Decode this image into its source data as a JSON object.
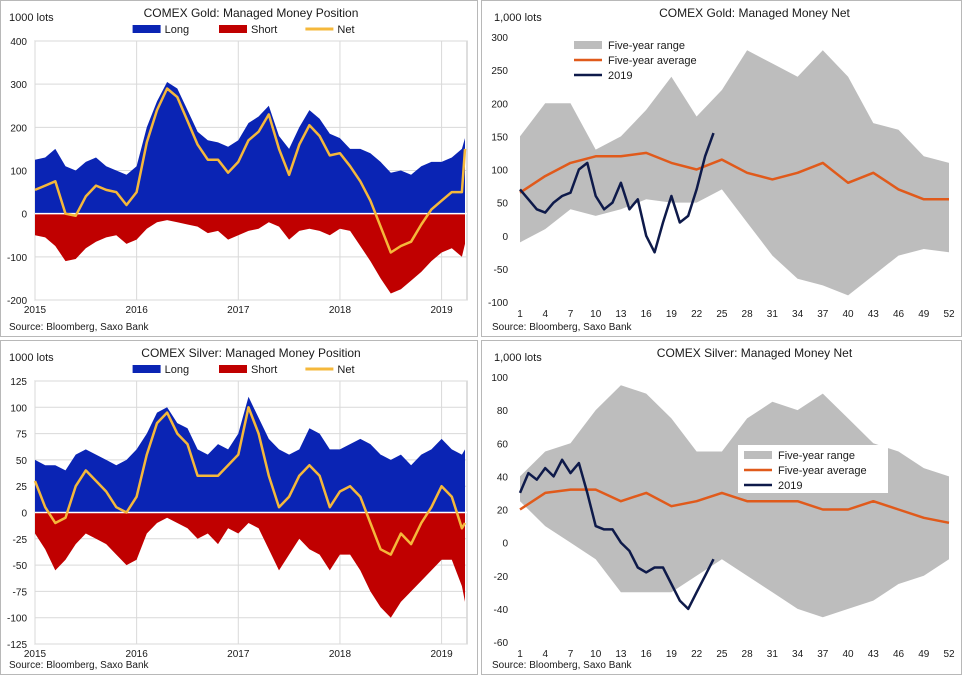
{
  "colors": {
    "long": "#0a24b4",
    "short": "#c00000",
    "net": "#f5b83b",
    "range": "#bdbdbd",
    "average": "#e05a1b",
    "y2019": "#0e1a4a"
  },
  "chart_data": [
    {
      "type": "area",
      "title": "COMEX Gold: Managed Money Position",
      "ylabel": "1000 lots",
      "source": "Source: Bloomberg, Saxo Bank",
      "ylim": [
        -200,
        400
      ],
      "yticks": [
        -200,
        -100,
        0,
        100,
        200,
        300,
        400
      ],
      "xlim": [
        2015.0,
        2019.25
      ],
      "xticks": [
        2015,
        2016,
        2017,
        2018,
        2019
      ],
      "legend": [
        "Long",
        "Short",
        "Net"
      ],
      "x": [
        2015.0,
        2015.1,
        2015.2,
        2015.3,
        2015.4,
        2015.5,
        2015.6,
        2015.7,
        2015.8,
        2015.9,
        2016.0,
        2016.1,
        2016.2,
        2016.3,
        2016.4,
        2016.5,
        2016.6,
        2016.7,
        2016.8,
        2016.9,
        2017.0,
        2017.1,
        2017.2,
        2017.3,
        2017.4,
        2017.5,
        2017.6,
        2017.7,
        2017.8,
        2017.9,
        2018.0,
        2018.1,
        2018.2,
        2018.3,
        2018.4,
        2018.5,
        2018.6,
        2018.7,
        2018.8,
        2018.9,
        2019.0,
        2019.1,
        2019.2,
        2019.23
      ],
      "series": [
        {
          "name": "Long",
          "values": [
            125,
            130,
            150,
            110,
            100,
            120,
            130,
            110,
            100,
            90,
            110,
            200,
            260,
            305,
            290,
            240,
            190,
            170,
            165,
            155,
            170,
            210,
            225,
            250,
            180,
            150,
            200,
            240,
            220,
            185,
            175,
            150,
            150,
            140,
            120,
            95,
            100,
            90,
            110,
            120,
            120,
            130,
            150,
            175
          ]
        },
        {
          "name": "Short",
          "values": [
            -50,
            -55,
            -75,
            -110,
            -105,
            -80,
            -65,
            -55,
            -50,
            -70,
            -60,
            -35,
            -20,
            -15,
            -20,
            -25,
            -30,
            -45,
            -40,
            -60,
            -50,
            -40,
            -35,
            -20,
            -30,
            -60,
            -40,
            -35,
            -40,
            -50,
            -35,
            -40,
            -75,
            -110,
            -150,
            -185,
            -175,
            -155,
            -135,
            -110,
            -90,
            -80,
            -100,
            -70
          ]
        },
        {
          "name": "Net",
          "values": [
            55,
            65,
            75,
            0,
            -5,
            40,
            65,
            55,
            50,
            20,
            50,
            165,
            240,
            290,
            270,
            215,
            160,
            125,
            125,
            95,
            120,
            170,
            190,
            230,
            150,
            90,
            160,
            205,
            180,
            135,
            140,
            110,
            75,
            30,
            -30,
            -90,
            -75,
            -65,
            -25,
            10,
            30,
            50,
            50,
            150
          ]
        }
      ]
    },
    {
      "type": "line",
      "title": "COMEX Gold: Managed Money Net",
      "ylabel": "1,000 lots",
      "source": "Source: Bloomberg, Saxo Bank",
      "ylim": [
        -100,
        300
      ],
      "yticks": [
        -100,
        -50,
        0,
        50,
        100,
        150,
        200,
        250,
        300
      ],
      "xlim": [
        1,
        52
      ],
      "xticks": [
        1,
        4,
        7,
        10,
        13,
        16,
        19,
        22,
        25,
        28,
        31,
        34,
        37,
        40,
        43,
        46,
        49,
        52
      ],
      "legend": [
        "Five-year range",
        "Five-year average",
        "2019"
      ],
      "x": [
        1,
        4,
        7,
        10,
        13,
        16,
        19,
        22,
        25,
        28,
        31,
        34,
        37,
        40,
        43,
        46,
        49,
        52
      ],
      "series": [
        {
          "name": "Five-year range",
          "low": [
            -10,
            10,
            40,
            30,
            40,
            55,
            50,
            50,
            70,
            20,
            -30,
            -65,
            -75,
            -90,
            -60,
            -30,
            -20,
            -25
          ],
          "high": [
            150,
            200,
            200,
            130,
            150,
            190,
            240,
            180,
            220,
            280,
            260,
            240,
            280,
            240,
            170,
            160,
            120,
            110
          ]
        },
        {
          "name": "Five-year average",
          "values": [
            65,
            90,
            110,
            120,
            120,
            125,
            110,
            100,
            115,
            95,
            85,
            95,
            110,
            80,
            95,
            70,
            55,
            55
          ]
        },
        {
          "name": "2019",
          "x": [
            1,
            2,
            3,
            4,
            5,
            6,
            7,
            8,
            9,
            10,
            11,
            12,
            13,
            14,
            15,
            16,
            17,
            18,
            19,
            20,
            21,
            22,
            23,
            24
          ],
          "values": [
            70,
            55,
            40,
            35,
            50,
            60,
            65,
            100,
            110,
            60,
            40,
            50,
            80,
            40,
            55,
            0,
            -25,
            20,
            60,
            20,
            30,
            70,
            120,
            155
          ]
        }
      ]
    },
    {
      "type": "area",
      "title": "COMEX Silver: Managed Money Position",
      "ylabel": "1000 lots",
      "source": "Source: Bloomberg, Saxo Bank",
      "ylim": [
        -125,
        125
      ],
      "yticks": [
        -125,
        -100,
        -75,
        -50,
        -25,
        0,
        25,
        50,
        75,
        100,
        125
      ],
      "xlim": [
        2015.0,
        2019.25
      ],
      "xticks": [
        2015,
        2016,
        2017,
        2018,
        2019
      ],
      "legend": [
        "Long",
        "Short",
        "Net"
      ],
      "x": [
        2015.0,
        2015.1,
        2015.2,
        2015.3,
        2015.4,
        2015.5,
        2015.6,
        2015.7,
        2015.8,
        2015.9,
        2016.0,
        2016.1,
        2016.2,
        2016.3,
        2016.4,
        2016.5,
        2016.6,
        2016.7,
        2016.8,
        2016.9,
        2017.0,
        2017.1,
        2017.2,
        2017.3,
        2017.4,
        2017.5,
        2017.6,
        2017.7,
        2017.8,
        2017.9,
        2018.0,
        2018.1,
        2018.2,
        2018.3,
        2018.4,
        2018.5,
        2018.6,
        2018.7,
        2018.8,
        2018.9,
        2019.0,
        2019.1,
        2019.2,
        2019.23
      ],
      "series": [
        {
          "name": "Long",
          "values": [
            50,
            45,
            45,
            40,
            55,
            60,
            55,
            50,
            45,
            50,
            60,
            75,
            95,
            100,
            85,
            80,
            60,
            55,
            65,
            60,
            75,
            110,
            90,
            70,
            60,
            55,
            60,
            80,
            75,
            60,
            60,
            65,
            70,
            65,
            55,
            50,
            55,
            45,
            55,
            60,
            70,
            60,
            55,
            60
          ]
        },
        {
          "name": "Short",
          "values": [
            -20,
            -35,
            -55,
            -45,
            -30,
            -20,
            -25,
            -30,
            -40,
            -50,
            -45,
            -20,
            -10,
            -5,
            -10,
            -15,
            -25,
            -20,
            -30,
            -15,
            -20,
            -10,
            -15,
            -35,
            -55,
            -40,
            -25,
            -35,
            -40,
            -55,
            -40,
            -40,
            -55,
            -75,
            -90,
            -100,
            -85,
            -75,
            -65,
            -55,
            -45,
            -45,
            -70,
            -85
          ]
        },
        {
          "name": "Net",
          "values": [
            30,
            5,
            -10,
            -5,
            25,
            40,
            30,
            20,
            5,
            0,
            15,
            55,
            85,
            95,
            75,
            65,
            35,
            35,
            35,
            45,
            55,
            100,
            75,
            35,
            5,
            15,
            35,
            45,
            35,
            5,
            20,
            25,
            15,
            -10,
            -35,
            -40,
            -20,
            -30,
            -10,
            5,
            25,
            15,
            -15,
            -10
          ]
        }
      ]
    },
    {
      "type": "line",
      "title": "COMEX Silver: Managed Money Net",
      "ylabel": "1,000 lots",
      "source": "Source: Bloomberg, Saxo Bank",
      "ylim": [
        -60,
        100
      ],
      "yticks": [
        -60,
        -40,
        -20,
        0,
        20,
        40,
        60,
        80,
        100
      ],
      "xlim": [
        1,
        52
      ],
      "xticks": [
        1,
        4,
        7,
        10,
        13,
        16,
        19,
        22,
        25,
        28,
        31,
        34,
        37,
        40,
        43,
        46,
        49,
        52
      ],
      "legend": [
        "Five-year range",
        "Five-year average",
        "2019"
      ],
      "x": [
        1,
        4,
        7,
        10,
        13,
        16,
        19,
        22,
        25,
        28,
        31,
        34,
        37,
        40,
        43,
        46,
        49,
        52
      ],
      "series": [
        {
          "name": "Five-year range",
          "low": [
            25,
            10,
            0,
            -10,
            -30,
            -30,
            -30,
            -20,
            -10,
            -20,
            -30,
            -40,
            -45,
            -40,
            -35,
            -25,
            -20,
            -10
          ],
          "high": [
            40,
            55,
            60,
            80,
            95,
            90,
            75,
            55,
            55,
            75,
            85,
            80,
            90,
            75,
            60,
            55,
            45,
            40
          ]
        },
        {
          "name": "Five-year average",
          "values": [
            20,
            30,
            32,
            32,
            25,
            30,
            22,
            25,
            30,
            25,
            25,
            25,
            20,
            20,
            25,
            20,
            15,
            12
          ]
        },
        {
          "name": "2019",
          "x": [
            1,
            2,
            3,
            4,
            5,
            6,
            7,
            8,
            9,
            10,
            11,
            12,
            13,
            14,
            15,
            16,
            17,
            18,
            19,
            20,
            21,
            22,
            23,
            24
          ],
          "values": [
            30,
            42,
            38,
            45,
            40,
            50,
            42,
            48,
            30,
            10,
            8,
            8,
            0,
            -5,
            -15,
            -18,
            -15,
            -15,
            -25,
            -35,
            -40,
            -30,
            -20,
            -10
          ]
        }
      ]
    }
  ]
}
